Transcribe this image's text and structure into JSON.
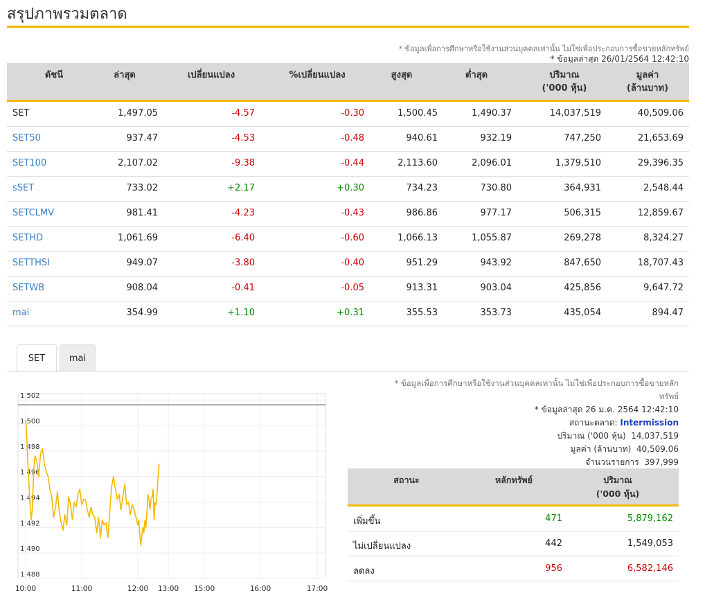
{
  "page": {
    "title": "สรุปภาพรวมตลาด",
    "disclaimer": "* ข้อมูลเพื่อการศึกษาหรือใช้งานส่วนบุคคลเท่านั้น ไม่ใช่เพื่อประกอบการซื้อขายหลักทรัพย์",
    "last_update": "* ข้อมูลล่าสุด 26/01/2564 12:42:10"
  },
  "index_table": {
    "headers": {
      "index": "ดัชนี",
      "last": "ล่าสุด",
      "change": "เปลี่ยนแปลง",
      "pct_change": "%เปลี่ยนแปลง",
      "high": "สูงสุด",
      "low": "ต่ำสุด",
      "volume": "ปริมาณ",
      "volume_unit": "('000 หุ้น)",
      "value": "มูลค่า",
      "value_unit": "(ล้านบาท)"
    },
    "rows": [
      {
        "name": "SET",
        "last": "1,497.05",
        "change": "-4.57",
        "pct": "-0.30",
        "high": "1,500.45",
        "low": "1,490.37",
        "volume": "14,037,519",
        "value": "40,509.06"
      },
      {
        "name": "SET50",
        "last": "937.47",
        "change": "-4.53",
        "pct": "-0.48",
        "high": "940.61",
        "low": "932.19",
        "volume": "747,250",
        "value": "21,653.69"
      },
      {
        "name": "SET100",
        "last": "2,107.02",
        "change": "-9.38",
        "pct": "-0.44",
        "high": "2,113.60",
        "low": "2,096.01",
        "volume": "1,379,510",
        "value": "29,396.35"
      },
      {
        "name": "sSET",
        "last": "733.02",
        "change": "+2.17",
        "pct": "+0.30",
        "high": "734.23",
        "low": "730.80",
        "volume": "364,931",
        "value": "2,548.44"
      },
      {
        "name": "SETCLMV",
        "last": "981.41",
        "change": "-4.23",
        "pct": "-0.43",
        "high": "986.86",
        "low": "977.17",
        "volume": "506,315",
        "value": "12,859.67"
      },
      {
        "name": "SETHD",
        "last": "1,061.69",
        "change": "-6.40",
        "pct": "-0.60",
        "high": "1,066.13",
        "low": "1,055.87",
        "volume": "269,278",
        "value": "8,324.27"
      },
      {
        "name": "SETTHSI",
        "last": "949.07",
        "change": "-3.80",
        "pct": "-0.40",
        "high": "951.29",
        "low": "943.92",
        "volume": "847,650",
        "value": "18,707.43"
      },
      {
        "name": "SETWB",
        "last": "908.04",
        "change": "-0.41",
        "pct": "-0.05",
        "high": "913.31",
        "low": "903.04",
        "volume": "425,856",
        "value": "9,647.72"
      },
      {
        "name": "mai",
        "last": "354.99",
        "change": "+1.10",
        "pct": "+0.31",
        "high": "355.53",
        "low": "353.73",
        "volume": "435,054",
        "value": "894.47"
      }
    ]
  },
  "tabs": [
    {
      "label": "SET"
    },
    {
      "label": "mai"
    }
  ],
  "chart_data": {
    "type": "line",
    "title": "",
    "xlabel": "",
    "ylabel": "",
    "x_ticks": [
      "10:00",
      "11:00",
      "12:00",
      "13:00",
      "15:00",
      "16:00",
      "17:00"
    ],
    "y_ticks": [
      "1,488",
      "1,490",
      "1,492",
      "1,494",
      "1,496",
      "1,498",
      "1,500",
      "1,502"
    ],
    "ylim": [
      1488,
      1502.5
    ],
    "reference_line": 1501.62,
    "line_color": "#f5b800",
    "series": [
      {
        "name": "",
        "x": [
          "10:00",
          "10:01",
          "10:02",
          "10:03",
          "10:04",
          "10:05",
          "10:06",
          "10:07",
          "10:08",
          "10:09",
          "10:10",
          "10:12",
          "10:14",
          "10:16",
          "10:18",
          "10:20",
          "10:22",
          "10:24",
          "10:26",
          "10:28",
          "10:30",
          "10:32",
          "10:34",
          "10:36",
          "10:38",
          "10:40",
          "10:42",
          "10:44",
          "10:46",
          "10:48",
          "10:50",
          "10:52",
          "10:54",
          "10:56",
          "10:58",
          "11:00",
          "11:02",
          "11:04",
          "11:06",
          "11:08",
          "11:10",
          "11:12",
          "11:14",
          "11:16",
          "11:18",
          "11:20",
          "11:22",
          "11:24",
          "11:26",
          "11:28",
          "11:30",
          "11:32",
          "11:34",
          "11:36",
          "11:38",
          "11:40",
          "11:42",
          "11:44",
          "11:46",
          "11:48",
          "11:50",
          "11:52",
          "11:54",
          "11:56",
          "11:58",
          "12:00",
          "12:02",
          "12:04",
          "12:06",
          "12:08",
          "12:10",
          "12:12",
          "12:14",
          "12:16",
          "12:18",
          "12:20",
          "12:22",
          "12:24",
          "12:26",
          "12:28",
          "12:30",
          "12:32",
          "12:34",
          "12:36",
          "12:38",
          "12:40",
          "12:42"
        ],
        "values": [
          1500.45,
          1499.5,
          1497.8,
          1496.2,
          1494.8,
          1493.5,
          1492.6,
          1493.4,
          1495.2,
          1496.8,
          1497.6,
          1497.2,
          1496.0,
          1497.8,
          1498.2,
          1497.0,
          1496.4,
          1496.0,
          1495.0,
          1494.4,
          1492.8,
          1493.6,
          1494.8,
          1493.2,
          1492.4,
          1491.8,
          1493.0,
          1492.2,
          1494.4,
          1493.8,
          1492.6,
          1494.0,
          1493.6,
          1494.6,
          1495.0,
          1493.8,
          1494.2,
          1494.2,
          1493.4,
          1492.8,
          1493.6,
          1493.0,
          1492.8,
          1491.6,
          1492.8,
          1491.2,
          1492.6,
          1492.2,
          1492.4,
          1491.2,
          1493.2,
          1495.2,
          1496.0,
          1495.0,
          1494.2,
          1494.6,
          1493.4,
          1494.4,
          1495.4,
          1493.8,
          1494.0,
          1493.0,
          1493.8,
          1493.4,
          1492.8,
          1492.2,
          1492.6,
          1491.4,
          1490.6,
          1491.4,
          1492.0,
          1491.6,
          1492.6,
          1492.0,
          1493.2,
          1494.6,
          1494.2,
          1493.4,
          1494.2,
          1494.4,
          1495.0,
          1492.6,
          1494.0,
          1493.8,
          1494.8,
          1496.0,
          1497.0
        ]
      }
    ]
  },
  "market_info": {
    "disclaimer_line1": "* ข้อมูลเพื่อการศึกษาหรือใช้งานส่วนบุคคลเท่านั้น ไม่ใช่เพื่อประกอบการซื้อขายหลัก",
    "disclaimer_line2": "ทรัพย์",
    "last_update": "* ข้อมูลล่าสุด 26 ม.ค. 2564 12:42:10",
    "status_label": "สถานะตลาด:",
    "status_value": "Intermission",
    "volume_label": "ปริมาณ ('000 หุ้น)",
    "volume_value": "14,037,519",
    "value_label": "มูลค่า (ล้านบาท)",
    "value_value": "40,509.06",
    "trades_label": "จำนวนรายการ",
    "trades_value": "397,999",
    "status_color": "#1a3fbf"
  },
  "status_table": {
    "headers": {
      "status": "สถานะ",
      "securities": "หลักทรัพย์",
      "volume": "ปริมาณ",
      "volume_unit": "('000 หุ้น)"
    },
    "rows": [
      {
        "label": "เพิ่มขึ้น",
        "count": "471",
        "volume": "5,879,162"
      },
      {
        "label": "ไม่เปลี่ยนแปลง",
        "count": "442",
        "volume": "1,549,053"
      },
      {
        "label": "ลดลง",
        "count": "956",
        "volume": "6,582,146"
      }
    ]
  }
}
